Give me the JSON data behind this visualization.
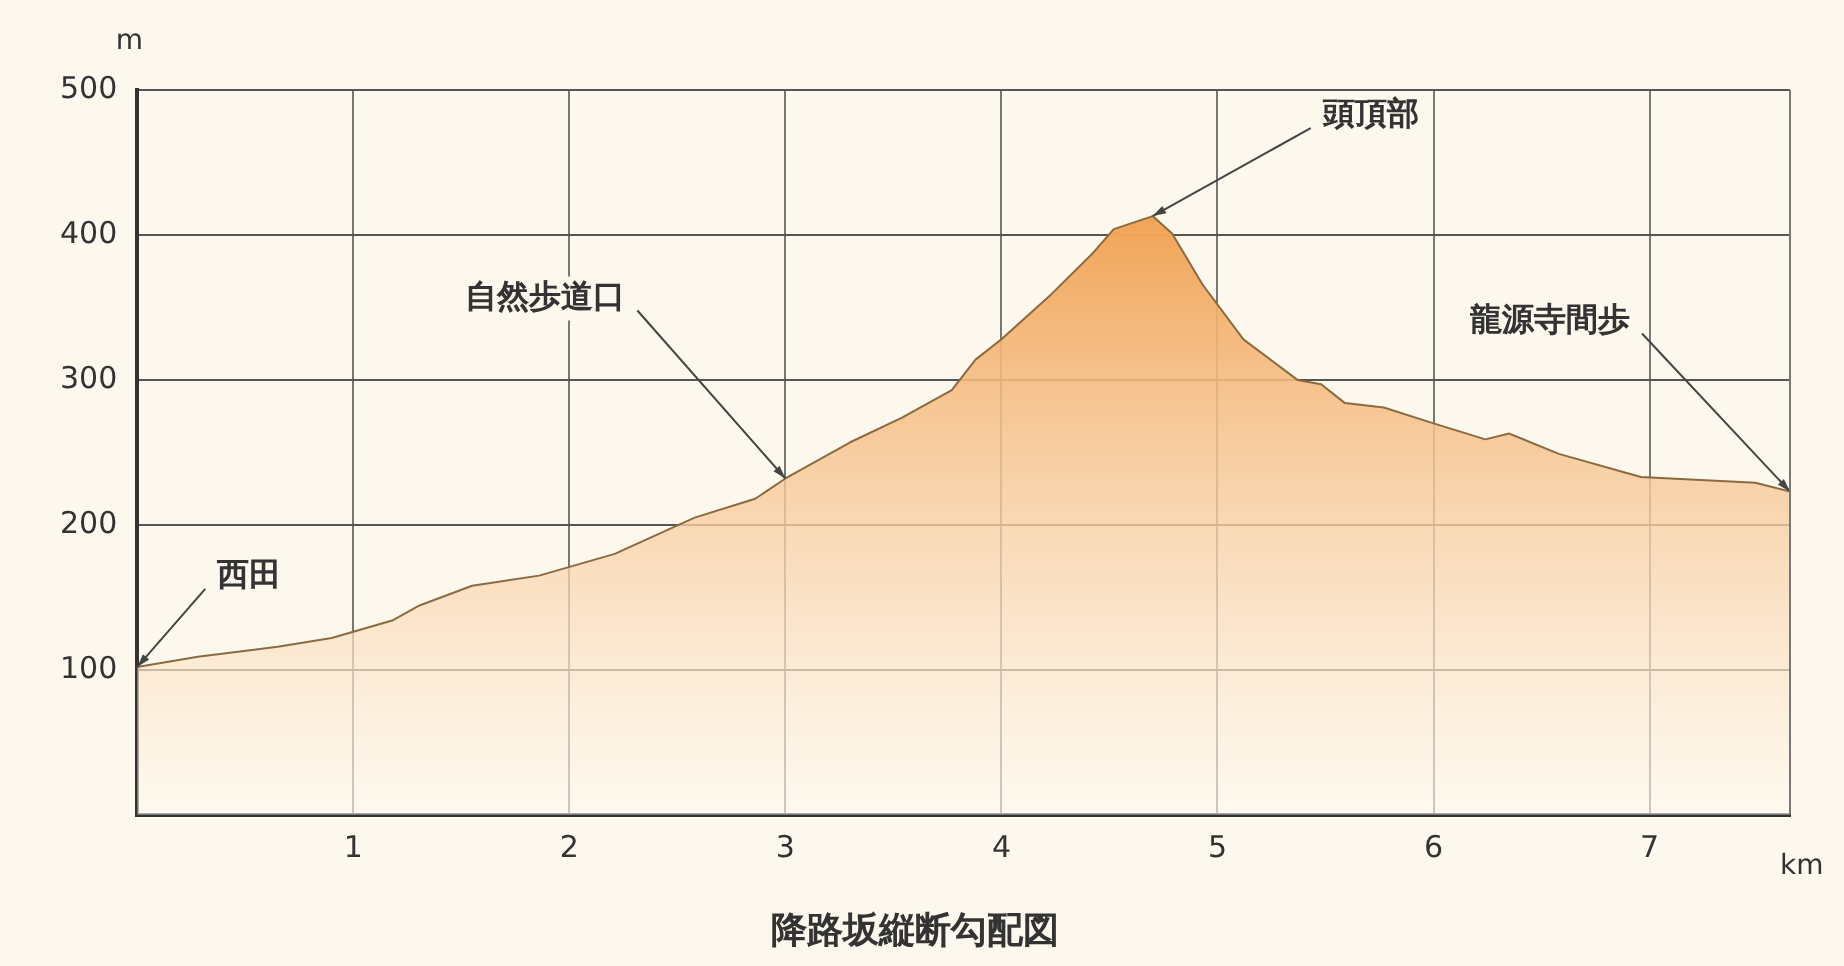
{
  "chart_data": {
    "type": "area",
    "title": "降路坂縦断勾配図",
    "xlabel": "km",
    "ylabel": "m",
    "x": [
      0,
      0.28,
      0.65,
      0.9,
      1.18,
      1.3,
      1.55,
      1.86,
      2.21,
      2.58,
      2.86,
      3.0,
      3.3,
      3.54,
      3.77,
      3.88,
      4.0,
      4.23,
      4.42,
      4.52,
      4.7,
      4.79,
      4.93,
      5.12,
      5.37,
      5.48,
      5.59,
      5.77,
      6.0,
      6.24,
      6.35,
      6.58,
      6.96,
      7.49,
      7.65
    ],
    "series": [
      {
        "color": "#f0a050",
        "values": [
          102,
          109,
          116,
          122,
          134,
          144,
          158,
          165,
          180,
          205,
          218,
          232,
          257,
          274,
          293,
          314,
          328,
          359,
          387,
          404,
          413,
          401,
          366,
          328,
          300,
          297,
          284,
          281,
          270,
          259,
          263,
          249,
          233,
          229,
          223
        ]
      }
    ],
    "xlim": [
      0,
      7.65
    ],
    "xticks": [
      1,
      2,
      3,
      4,
      5,
      6,
      7
    ],
    "ylim": [
      0,
      500
    ],
    "yticks": [
      100,
      200,
      300,
      400,
      500
    ],
    "grid": true,
    "annotations": [
      {
        "text": "西田",
        "x": 0,
        "y": 102
      },
      {
        "text": "自然歩道口",
        "x": 3.0,
        "y": 232
      },
      {
        "text": "頭頂部",
        "x": 4.7,
        "y": 413
      },
      {
        "text": "龍源寺間歩",
        "x": 7.65,
        "y": 223
      }
    ]
  }
}
